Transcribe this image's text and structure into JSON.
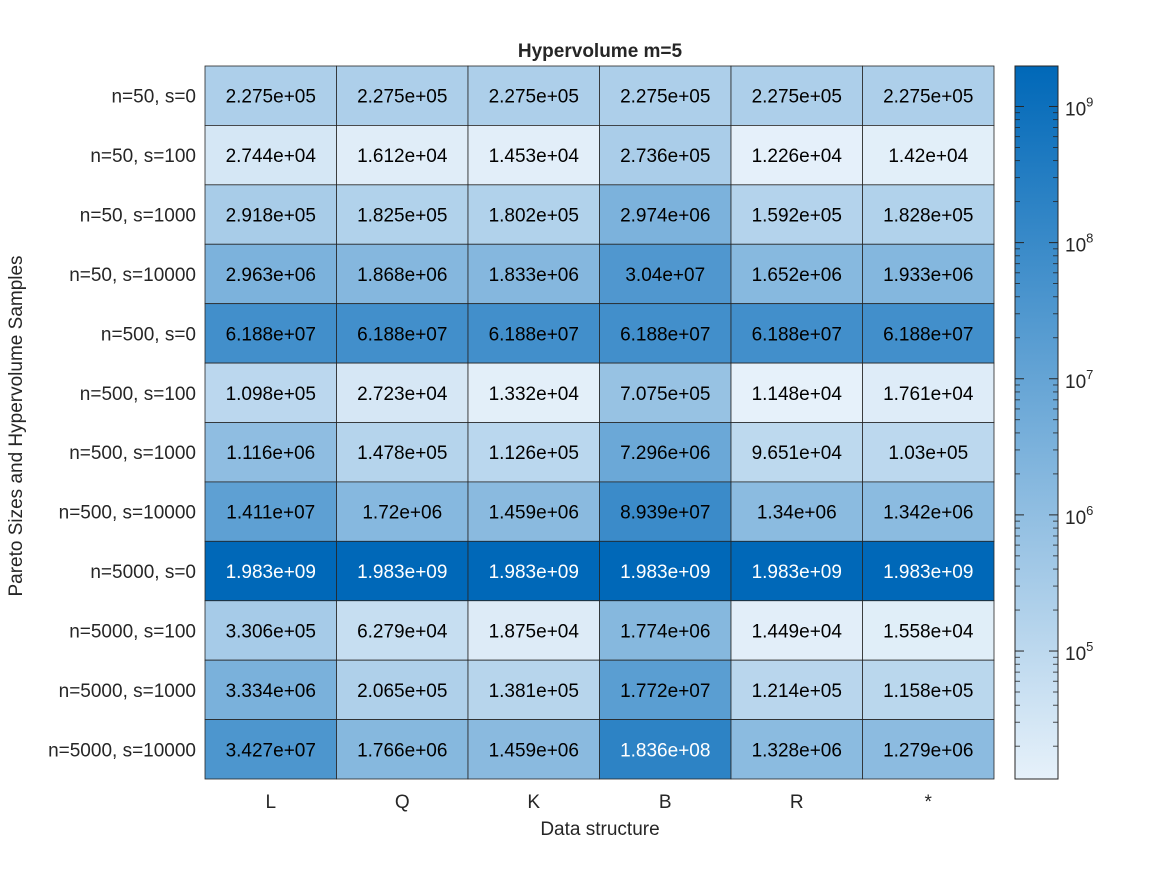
{
  "chart_data": {
    "type": "heatmap",
    "title": "Hypervolume m=5",
    "xlabel": "Data structure",
    "ylabel": "Pareto Sizes and Hypervolume Samples",
    "x_categories": [
      "L",
      "Q",
      "K",
      "B",
      "R",
      "*"
    ],
    "y_categories": [
      "n=50, s=0",
      "n=50, s=100",
      "n=50, s=1000",
      "n=50, s=10000",
      "n=500, s=0",
      "n=500, s=100",
      "n=500, s=1000",
      "n=500, s=10000",
      "n=5000, s=0",
      "n=5000, s=100",
      "n=5000, s=1000",
      "n=5000, s=10000"
    ],
    "cell_labels": [
      [
        "2.275e+05",
        "2.275e+05",
        "2.275e+05",
        "2.275e+05",
        "2.275e+05",
        "2.275e+05"
      ],
      [
        "2.744e+04",
        "1.612e+04",
        "1.453e+04",
        "2.736e+05",
        "1.226e+04",
        "1.42e+04"
      ],
      [
        "2.918e+05",
        "1.825e+05",
        "1.802e+05",
        "2.974e+06",
        "1.592e+05",
        "1.828e+05"
      ],
      [
        "2.963e+06",
        "1.868e+06",
        "1.833e+06",
        "3.04e+07",
        "1.652e+06",
        "1.933e+06"
      ],
      [
        "6.188e+07",
        "6.188e+07",
        "6.188e+07",
        "6.188e+07",
        "6.188e+07",
        "6.188e+07"
      ],
      [
        "1.098e+05",
        "2.723e+04",
        "1.332e+04",
        "7.075e+05",
        "1.148e+04",
        "1.761e+04"
      ],
      [
        "1.116e+06",
        "1.478e+05",
        "1.126e+05",
        "7.296e+06",
        "9.651e+04",
        "1.03e+05"
      ],
      [
        "1.411e+07",
        "1.72e+06",
        "1.459e+06",
        "8.939e+07",
        "1.34e+06",
        "1.342e+06"
      ],
      [
        "1.983e+09",
        "1.983e+09",
        "1.983e+09",
        "1.983e+09",
        "1.983e+09",
        "1.983e+09"
      ],
      [
        "3.306e+05",
        "6.279e+04",
        "1.875e+04",
        "1.774e+06",
        "1.449e+04",
        "1.558e+04"
      ],
      [
        "3.334e+06",
        "2.065e+05",
        "1.381e+05",
        "1.772e+07",
        "1.214e+05",
        "1.158e+05"
      ],
      [
        "3.427e+07",
        "1.766e+06",
        "1.459e+06",
        "1.836e+08",
        "1.328e+06",
        "1.279e+06"
      ]
    ],
    "colorbar": {
      "scale": "log",
      "range": [
        11480,
        1983000000
      ],
      "tick_values": [
        100000,
        1000000,
        10000000,
        100000000,
        1000000000
      ],
      "tick_exponents": [
        "5",
        "6",
        "7",
        "8",
        "9"
      ],
      "tick_base": "10",
      "color_low": "#e6f1fa",
      "color_high": "#0068b8"
    },
    "grid": true
  }
}
